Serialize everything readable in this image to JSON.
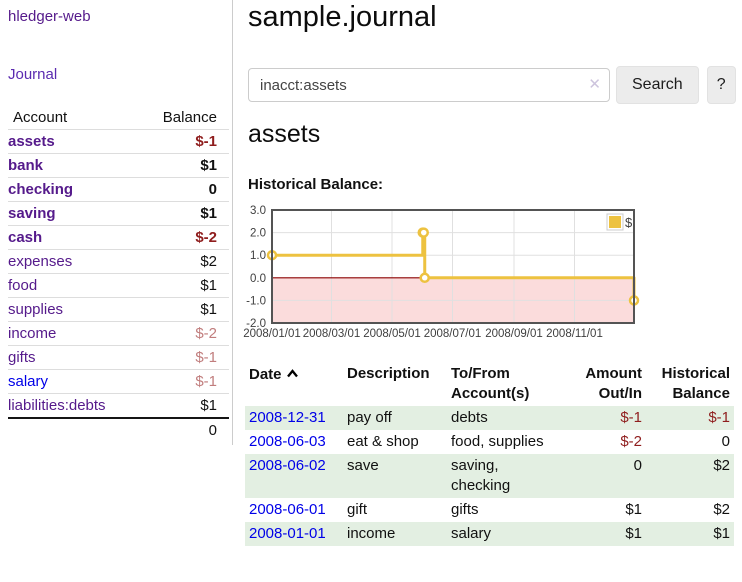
{
  "colors": {
    "brand_purple": "#551a8b",
    "link_blue": "#0000e8",
    "negative_strong": "#8f1d1d",
    "negative_soft": "#c17d7d",
    "row_highlight_green": "#e3efe2",
    "chart_line_gold": "#edc240",
    "chart_negative_fill": "#fbdcdc",
    "chart_zero_line": "#8b0000"
  },
  "sidebar": {
    "brand": "hledger-web",
    "journal_link": "Journal",
    "accounts_table": {
      "headers": {
        "account": "Account",
        "balance": "Balance"
      },
      "rows": [
        {
          "account": "assets",
          "balance": "$-1",
          "depth": 1,
          "emph": true
        },
        {
          "account": "bank",
          "balance": "$1",
          "depth": 2,
          "emph": true
        },
        {
          "account": "checking",
          "balance": "0",
          "depth": 3,
          "emph": true
        },
        {
          "account": "saving",
          "balance": "$1",
          "depth": 3,
          "emph": true
        },
        {
          "account": "cash",
          "balance": "$-2",
          "depth": 2,
          "emph": true
        },
        {
          "account": "expenses",
          "balance": "$2",
          "depth": 1,
          "emph": false
        },
        {
          "account": "food",
          "balance": "$1",
          "depth": 2,
          "emph": false
        },
        {
          "account": "supplies",
          "balance": "$1",
          "depth": 2,
          "emph": false
        },
        {
          "account": "income",
          "balance": "$-2",
          "depth": 1,
          "emph": false
        },
        {
          "account": "gifts",
          "balance": "$-1",
          "depth": 2,
          "emph": false
        },
        {
          "account": "salary",
          "balance": "$-1",
          "depth": 2,
          "emph": false,
          "link": "blue"
        },
        {
          "account": "liabilities:debts",
          "balance": "$1",
          "depth": 1,
          "emph": false
        }
      ],
      "total": "0"
    }
  },
  "main": {
    "title": "sample.journal",
    "search": {
      "value": "inacct:assets",
      "clear_icon": "✕",
      "button": "Search",
      "help_button": "?"
    },
    "section_title": "assets",
    "chart_label": "Historical Balance:"
  },
  "chart_data": {
    "type": "line",
    "subtype": "step",
    "series": [
      {
        "name": "$",
        "points": [
          [
            "2008-01-01",
            1
          ],
          [
            "2008-06-01",
            2
          ],
          [
            "2008-06-02",
            2
          ],
          [
            "2008-06-03",
            0
          ],
          [
            "2008-12-31",
            -1
          ]
        ]
      }
    ],
    "xlim": [
      "2008-01-01",
      "2008-12-31"
    ],
    "ylim": [
      -2,
      3
    ],
    "x_ticks": [
      "2008/01/01",
      "2008/03/01",
      "2008/05/01",
      "2008/07/01",
      "2008/09/01",
      "2008/11/01"
    ],
    "y_ticks": [
      -2,
      -1,
      0,
      1,
      2,
      3
    ],
    "y_tick_labels": [
      "-2.0",
      "-1.0",
      "0.0",
      "1.0",
      "2.0",
      "3.0"
    ],
    "legend_position": "top-right",
    "grid": true,
    "negative_region_shaded": true
  },
  "transactions": {
    "headers": [
      "Date",
      "Description",
      "To/From Account(s)",
      "Amount Out/In",
      "Historical Balance"
    ],
    "rows": [
      {
        "date": "2008-12-31",
        "description": "pay off",
        "accounts": "debts",
        "amount": "$-1",
        "balance": "$-1"
      },
      {
        "date": "2008-06-03",
        "description": "eat & shop",
        "accounts": "food, supplies",
        "amount": "$-2",
        "balance": "0"
      },
      {
        "date": "2008-06-02",
        "description": "save",
        "accounts": "saving, checking",
        "amount": "0",
        "balance": "$2"
      },
      {
        "date": "2008-06-01",
        "description": "gift",
        "accounts": "gifts",
        "amount": "$1",
        "balance": "$2"
      },
      {
        "date": "2008-01-01",
        "description": "income",
        "accounts": "salary",
        "amount": "$1",
        "balance": "$1"
      }
    ]
  }
}
